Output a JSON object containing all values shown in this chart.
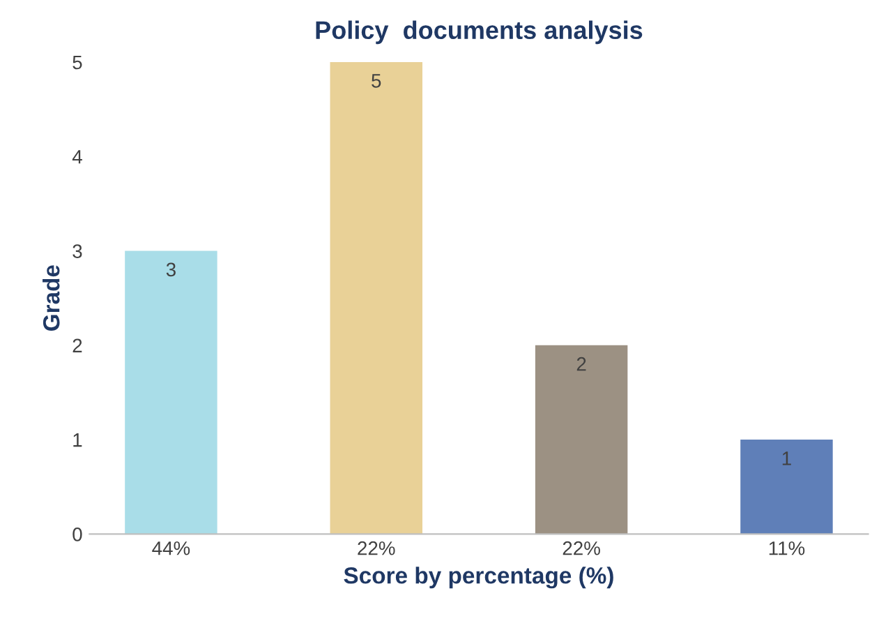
{
  "chart_data": {
    "type": "bar",
    "title": "Policy  documents analysis",
    "xlabel": "Score by percentage (%)",
    "ylabel": "Grade",
    "categories": [
      "44%",
      "22%",
      "22%",
      "11%"
    ],
    "values": [
      3,
      5,
      2,
      1
    ],
    "colors": [
      "#a9dde8",
      "#e9d197",
      "#9c9183",
      "#5f7fb8"
    ],
    "ylim": [
      0,
      5
    ],
    "yticks": [
      0,
      1,
      2,
      3,
      4,
      5
    ],
    "grid": false,
    "data_labels": true
  }
}
